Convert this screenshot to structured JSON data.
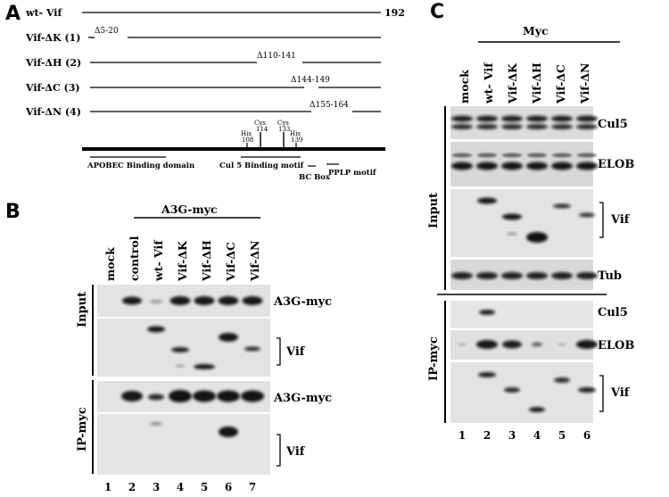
{
  "panel_a": {
    "letter": "A",
    "wt_label": "wt- Vif",
    "wt_end": "192",
    "constructs": [
      {
        "label": "Vif-ΔK (1)",
        "deletion": "Δ5-20"
      },
      {
        "label": "Vif-ΔH (2)",
        "deletion": "Δ110-141"
      },
      {
        "label": "Vif-ΔC (3)",
        "deletion": "Δ144-149"
      },
      {
        "label": "Vif-ΔN (4)",
        "deletion": "Δ155-164"
      }
    ],
    "residues": [
      {
        "name": "His",
        "num": "108"
      },
      {
        "name": "Cys",
        "num": "114"
      },
      {
        "name": "Cys",
        "num": "133"
      },
      {
        "name": "His",
        "num": "139"
      }
    ],
    "domains": {
      "apobec": "APOBEC Binding domain",
      "cul5": "Cul 5 Binding motif",
      "bcbox": "BC Box",
      "pplp": "PPLP motif"
    }
  },
  "panel_b": {
    "letter": "B",
    "group_label": "A3G-myc",
    "lane_labels": [
      "mock",
      "control",
      "wt- Vif",
      "Vif-ΔK",
      "Vif-ΔH",
      "Vif-ΔC",
      "Vif-ΔN"
    ],
    "lane_numbers": [
      "1",
      "2",
      "3",
      "4",
      "5",
      "6",
      "7"
    ],
    "section_input": "Input",
    "section_ip": "IP-myc",
    "blot_labels": [
      "A3G-myc",
      "Vif",
      "A3G-myc",
      "Vif"
    ]
  },
  "panel_c": {
    "letter": "C",
    "group_label": "Myc",
    "lane_labels": [
      "mock",
      "wt- Vif",
      "Vif-ΔK",
      "Vif-ΔH",
      "Vif-ΔC",
      "Vif-ΔN"
    ],
    "lane_numbers": [
      "1",
      "2",
      "3",
      "4",
      "5",
      "6"
    ],
    "section_input": "Input",
    "section_ip": "IP-myc",
    "blot_labels": [
      "Cul5",
      "ELOB",
      "Vif",
      "Tub",
      "Cul5",
      "ELOB",
      "Vif"
    ]
  }
}
